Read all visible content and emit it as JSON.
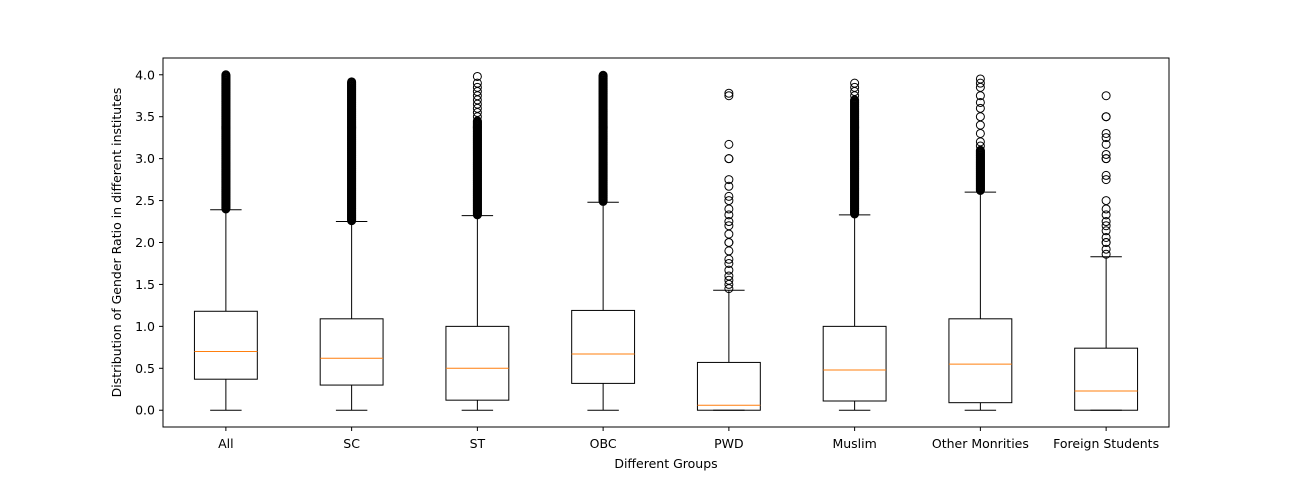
{
  "chart_data": {
    "type": "box",
    "xlabel": "Different Groups",
    "ylabel": "Distribution of Gender Ratio in different institutes",
    "ylim": [
      -0.2,
      4.2
    ],
    "yticks": [
      "0.0",
      "0.5",
      "1.0",
      "1.5",
      "2.0",
      "2.5",
      "3.0",
      "3.5",
      "4.0"
    ],
    "grid": false,
    "legend": "none",
    "categories": [
      "All",
      "SC",
      "ST",
      "OBC",
      "PWD",
      "Muslim",
      "Other Monrities",
      "Foreign Students"
    ],
    "boxes": [
      {
        "min": 0.0,
        "q1": 0.37,
        "median": 0.7,
        "q3": 1.18,
        "max": 2.39,
        "outliers": {
          "dense_from": 2.4,
          "dense_to": 4.0,
          "points": []
        }
      },
      {
        "min": 0.0,
        "q1": 0.3,
        "median": 0.62,
        "q3": 1.09,
        "max": 2.25,
        "outliers": {
          "dense_from": 2.26,
          "dense_to": 3.92,
          "points": []
        }
      },
      {
        "min": 0.0,
        "q1": 0.12,
        "median": 0.5,
        "q3": 1.0,
        "max": 2.32,
        "outliers": {
          "dense_from": 2.33,
          "dense_to": 3.45,
          "points": [
            3.5,
            3.55,
            3.6,
            3.65,
            3.7,
            3.75,
            3.8,
            3.85,
            3.9,
            3.98
          ]
        }
      },
      {
        "min": 0.0,
        "q1": 0.32,
        "median": 0.67,
        "q3": 1.19,
        "max": 2.48,
        "outliers": {
          "dense_from": 2.49,
          "dense_to": 4.0,
          "points": []
        }
      },
      {
        "min": 0.0,
        "q1": 0.0,
        "median": 0.06,
        "q3": 0.57,
        "max": 1.43,
        "outliers": {
          "dense_from": null,
          "dense_to": null,
          "points": [
            1.45,
            1.5,
            1.55,
            1.6,
            1.67,
            1.75,
            1.8,
            1.9,
            2.0,
            2.0,
            2.1,
            2.2,
            2.25,
            2.33,
            2.4,
            2.5,
            2.55,
            2.67,
            2.75,
            3.0,
            3.0,
            3.17,
            3.75,
            3.78
          ]
        }
      },
      {
        "min": 0.0,
        "q1": 0.11,
        "median": 0.48,
        "q3": 1.0,
        "max": 2.33,
        "outliers": {
          "dense_from": 2.34,
          "dense_to": 3.7,
          "points": [
            3.75,
            3.8,
            3.85,
            3.9
          ]
        }
      },
      {
        "min": 0.0,
        "q1": 0.09,
        "median": 0.55,
        "q3": 1.09,
        "max": 2.6,
        "outliers": {
          "dense_from": 2.62,
          "dense_to": 3.1,
          "points": [
            3.15,
            3.2,
            3.3,
            3.4,
            3.5,
            3.6,
            3.67,
            3.75,
            3.85,
            3.9,
            3.95
          ]
        }
      },
      {
        "min": 0.0,
        "q1": 0.0,
        "median": 0.23,
        "q3": 0.74,
        "max": 1.83,
        "outliers": {
          "dense_from": null,
          "dense_to": null,
          "points": [
            1.86,
            1.92,
            2.0,
            2.0,
            2.06,
            2.14,
            2.2,
            2.25,
            2.33,
            2.4,
            2.5,
            2.75,
            2.8,
            3.0,
            3.0,
            3.05,
            3.17,
            3.25,
            3.3,
            3.5,
            3.5,
            3.75
          ]
        }
      }
    ],
    "colors": {
      "box": "#000000",
      "median": "#ff7f0e",
      "outlier": "#000000"
    }
  }
}
